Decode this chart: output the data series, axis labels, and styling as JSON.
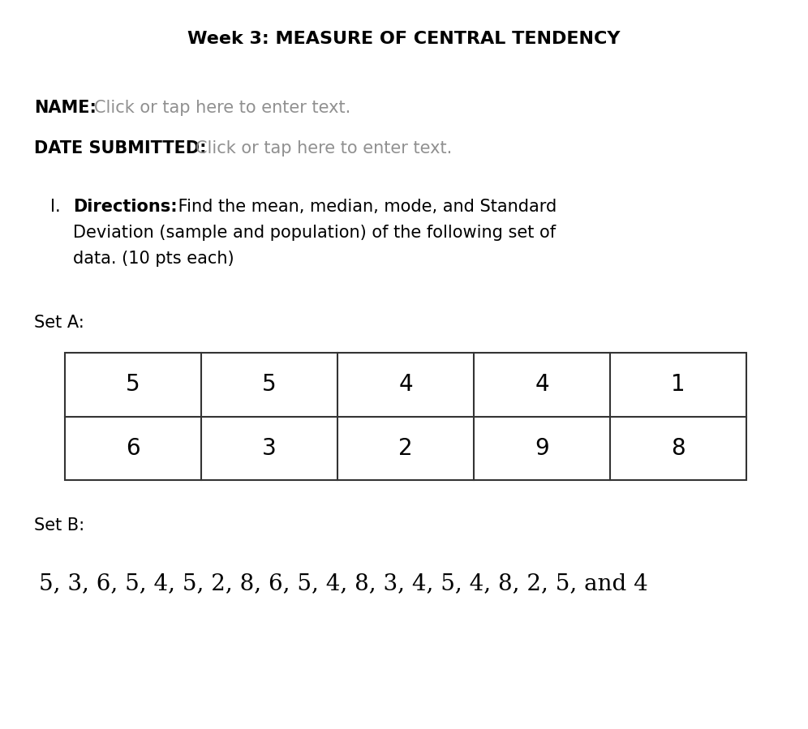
{
  "title": "Week 3: MEASURE OF CENTRAL TENDENCY",
  "name_label": "NAME:",
  "name_placeholder": "Click or tap here to enter text.",
  "date_label": "DATE SUBMITTED:",
  "date_placeholder": "Click or tap here to enter text.",
  "directions_number": "I.",
  "directions_bold": "Directions:",
  "dir_line1_after": " Find the mean, median, mode, and Standard",
  "dir_line2": "Deviation (sample and population) of the following set of",
  "dir_line3": "data. (10 pts each)",
  "set_a_label": "Set A:",
  "set_b_label": "Set B:",
  "table_row1": [
    "5",
    "5",
    "4",
    "4",
    "1"
  ],
  "table_row2": [
    "6",
    "3",
    "2",
    "9",
    "8"
  ],
  "set_b_data": "5, 3, 6, 5, 4, 5, 2, 8, 6, 5, 4, 8, 3, 4, 5, 4, 8, 2, 5, and 4",
  "bg_color": "#ffffff",
  "text_color": "#000000",
  "placeholder_color": "#909090",
  "title_fontsize": 16,
  "body_fontsize": 15,
  "table_num_fontsize": 20,
  "set_b_fontsize": 20
}
